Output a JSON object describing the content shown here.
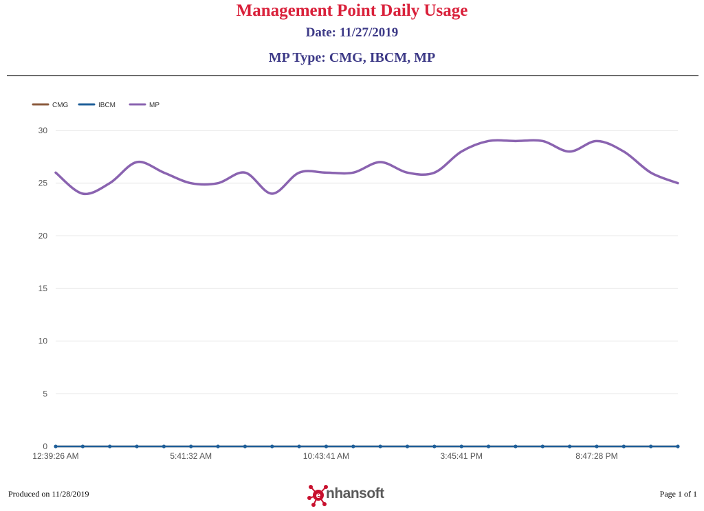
{
  "report": {
    "title": "Management Point Daily Usage",
    "date_line": "Date: 11/27/2019",
    "mp_type_line": "MP Type: CMG, IBCM, MP"
  },
  "footer": {
    "produced": "Produced on 11/28/2019",
    "page": "Page 1 of 1",
    "logo_text": "nhansoft"
  },
  "colors": {
    "title": "#d9203a",
    "subtitle": "#3d3a87",
    "CMG": "#8b5a3c",
    "IBCM": "#1f5f99",
    "MP": "#8a63b0"
  },
  "chart_data": {
    "type": "line",
    "ylim": [
      0,
      30
    ],
    "yticks": [
      0,
      5,
      10,
      15,
      20,
      25,
      30
    ],
    "x_tick_labels": [
      "12:39:26 AM",
      "5:41:32 AM",
      "10:43:41 AM",
      "3:45:41 PM",
      "8:47:28 PM"
    ],
    "x_tick_label_indices": [
      0,
      5,
      10,
      15,
      20
    ],
    "point_count": 24,
    "legend": [
      "CMG",
      "IBCM",
      "MP"
    ],
    "legend_position": "top-left",
    "grid": true,
    "series": [
      {
        "name": "CMG",
        "values": [
          0,
          0,
          0,
          0,
          0,
          0,
          0,
          0,
          0,
          0,
          0,
          0,
          0,
          0,
          0,
          0,
          0,
          0,
          0,
          0,
          0,
          0,
          0,
          0
        ]
      },
      {
        "name": "IBCM",
        "values": [
          0,
          0,
          0,
          0,
          0,
          0,
          0,
          0,
          0,
          0,
          0,
          0,
          0,
          0,
          0,
          0,
          0,
          0,
          0,
          0,
          0,
          0,
          0,
          0
        ]
      },
      {
        "name": "MP",
        "values": [
          26,
          24,
          25,
          27,
          26,
          25,
          25,
          26,
          24,
          26,
          26,
          26,
          27,
          26,
          26,
          28,
          29,
          29,
          29,
          28,
          29,
          28,
          26,
          25
        ]
      }
    ]
  }
}
